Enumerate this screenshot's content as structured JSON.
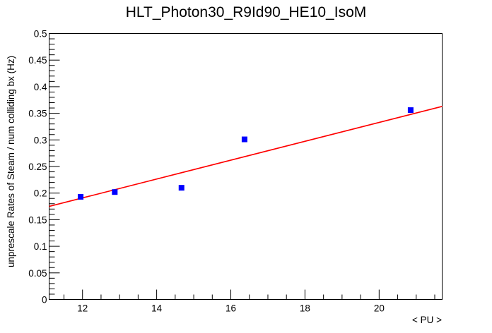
{
  "chart_data": {
    "type": "scatter",
    "title": "HLT_Photon30_R9Id90_HE10_IsoM",
    "xlabel": "< PU >",
    "ylabel": "unprescale Rates of Steam / num colliding bx (Hz)",
    "xlim": [
      11.1,
      21.7
    ],
    "ylim": [
      0,
      0.5
    ],
    "x_ticks": [
      12,
      14,
      16,
      18,
      20
    ],
    "y_ticks": [
      0,
      0.05,
      0.1,
      0.15,
      0.2,
      0.25,
      0.3,
      0.35,
      0.4,
      0.45,
      0.5
    ],
    "x_tick_labels": [
      "12",
      "14",
      "16",
      "18",
      "20"
    ],
    "y_tick_labels": [
      "0",
      "0.05",
      "0.1",
      "0.15",
      "0.2",
      "0.25",
      "0.3",
      "0.35",
      "0.4",
      "0.45",
      "0.5"
    ],
    "grid": false,
    "series": [
      {
        "marker": "square",
        "color": "#0000ff",
        "points": [
          {
            "x": 11.95,
            "y": 0.193
          },
          {
            "x": 12.87,
            "y": 0.202
          },
          {
            "x": 14.67,
            "y": 0.21
          },
          {
            "x": 16.37,
            "y": 0.301
          },
          {
            "x": 20.85,
            "y": 0.356
          }
        ]
      }
    ],
    "fit_line": {
      "color": "#ff0000",
      "x": [
        11.1,
        21.7
      ],
      "y": [
        0.175,
        0.363
      ]
    }
  }
}
